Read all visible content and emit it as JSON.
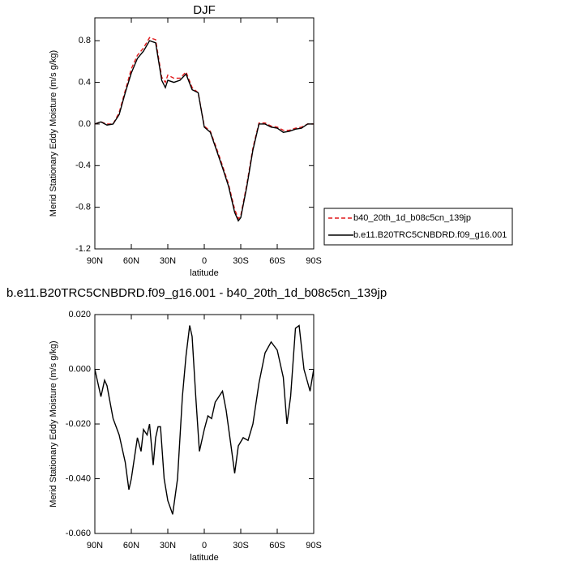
{
  "chart_data": [
    {
      "type": "line",
      "title": "DJF",
      "x_label": "latitude",
      "y_label": "Merid Stationary Eddy Moisture (m/s g/kg)",
      "x": [
        90,
        85,
        80,
        75,
        70,
        65,
        60,
        55,
        50,
        45,
        40,
        35,
        32,
        30,
        25,
        20,
        15,
        10,
        5,
        0,
        -5,
        -10,
        -15,
        -20,
        -25,
        -28,
        -30,
        -35,
        -40,
        -45,
        -50,
        -55,
        -60,
        -65,
        -70,
        -75,
        -80,
        -85,
        -90
      ],
      "series": [
        {
          "name": "b40_20th_1d_b08c5cn_139jp",
          "color": "#e0191b",
          "style": "dashed",
          "values": [
            0.0,
            0.02,
            0.0,
            0.0,
            0.11,
            0.32,
            0.53,
            0.66,
            0.73,
            0.83,
            0.81,
            0.45,
            0.4,
            0.47,
            0.44,
            0.44,
            0.5,
            0.35,
            0.3,
            -0.02,
            -0.07,
            -0.23,
            -0.4,
            -0.58,
            -0.82,
            -0.91,
            -0.88,
            -0.58,
            -0.23,
            0.01,
            0.01,
            -0.02,
            -0.03,
            -0.06,
            -0.06,
            -0.04,
            -0.03,
            0.0,
            0.0
          ]
        },
        {
          "name": "b.e11.B20TRC5CNBDRD.f09_g16.001",
          "color": "#000000",
          "style": "solid",
          "values": [
            0.0,
            0.02,
            -0.01,
            0.0,
            0.09,
            0.3,
            0.49,
            0.63,
            0.7,
            0.8,
            0.78,
            0.42,
            0.35,
            0.42,
            0.4,
            0.42,
            0.48,
            0.33,
            0.3,
            -0.03,
            -0.08,
            -0.25,
            -0.42,
            -0.6,
            -0.85,
            -0.93,
            -0.9,
            -0.6,
            -0.25,
            0.0,
            0.0,
            -0.03,
            -0.04,
            -0.08,
            -0.07,
            -0.05,
            -0.04,
            0.0,
            0.0
          ]
        }
      ],
      "xlim": [
        90,
        -90
      ],
      "xticks": [
        {
          "value": 90,
          "label": "90N"
        },
        {
          "value": 60,
          "label": "60N"
        },
        {
          "value": 30,
          "label": "30N"
        },
        0,
        {
          "value": -30,
          "label": "30S"
        },
        {
          "value": -60,
          "label": "60S"
        },
        {
          "value": -90,
          "label": "90S"
        }
      ],
      "ylim": [
        -1.2,
        1.02
      ],
      "yticks": [
        0.8,
        0.4,
        {
          "value": 0,
          "label": "0.0"
        },
        -0.4,
        -0.8,
        -1.2
      ],
      "legend": "right"
    },
    {
      "type": "line",
      "title": "b.e11.B20TRC5CNBDRD.f09_g16.001 - b40_20th_1d_b08c5cn_139jp",
      "x_label": "latitude",
      "y_label": "Merid Stationary Eddy Moisture (m/s g/kg)",
      "x": [
        90,
        85,
        82,
        80,
        75,
        70,
        65,
        62,
        60,
        55,
        52,
        50,
        47,
        45,
        42,
        40,
        38,
        36,
        33,
        30,
        26,
        22,
        18,
        15,
        12,
        10,
        7,
        4,
        0,
        -3,
        -6,
        -9,
        -12,
        -15,
        -18,
        -22,
        -25,
        -28,
        -32,
        -36,
        -40,
        -45,
        -50,
        -55,
        -60,
        -65,
        -68,
        -71,
        -75,
        -78,
        -82,
        -87,
        -90
      ],
      "series": [
        {
          "name": "difference",
          "color": "#000000",
          "style": "solid",
          "values": [
            0.0,
            -0.01,
            -0.004,
            -0.006,
            -0.018,
            -0.024,
            -0.034,
            -0.044,
            -0.04,
            -0.025,
            -0.03,
            -0.022,
            -0.024,
            -0.02,
            -0.035,
            -0.025,
            -0.021,
            -0.021,
            -0.04,
            -0.048,
            -0.053,
            -0.04,
            -0.01,
            0.005,
            0.016,
            0.012,
            -0.01,
            -0.03,
            -0.022,
            -0.017,
            -0.018,
            -0.012,
            -0.01,
            -0.008,
            -0.015,
            -0.028,
            -0.038,
            -0.028,
            -0.025,
            -0.026,
            -0.02,
            -0.005,
            0.006,
            0.01,
            0.007,
            -0.003,
            -0.02,
            -0.01,
            0.015,
            0.016,
            0.0,
            -0.008,
            0.0
          ]
        }
      ],
      "xlim": [
        90,
        -90
      ],
      "xticks": [
        {
          "value": 90,
          "label": "90N"
        },
        {
          "value": 60,
          "label": "60N"
        },
        {
          "value": 30,
          "label": "30N"
        },
        0,
        {
          "value": -30,
          "label": "30S"
        },
        {
          "value": -60,
          "label": "60S"
        },
        {
          "value": -90,
          "label": "90S"
        }
      ],
      "ylim": [
        -0.06,
        0.02
      ],
      "yticks": [
        {
          "value": 0.02,
          "label": "0.020"
        },
        {
          "value": 0,
          "label": "0.000"
        },
        {
          "value": -0.02,
          "label": "-0.020"
        },
        {
          "value": -0.04,
          "label": "-0.040"
        },
        {
          "value": -0.06,
          "label": "-0.060"
        }
      ]
    }
  ]
}
